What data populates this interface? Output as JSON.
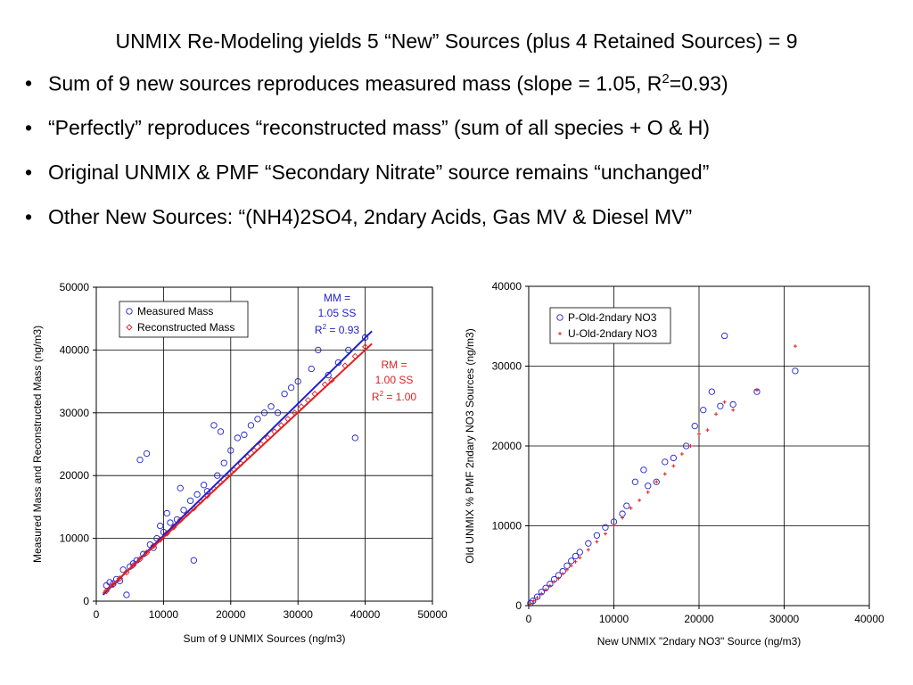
{
  "slide": {
    "title": "UNMIX Re-Modeling yields 5 “New” Sources (plus 4 Retained Sources) = 9",
    "bullets": [
      {
        "before": "Sum of 9 new sources reproduces measured mass (slope = 1.05, R",
        "sup": "2",
        "after": "=0.93)"
      },
      {
        "before": "“Perfectly” reproduces “reconstructed mass” (sum of all species + O & H)",
        "sup": "",
        "after": ""
      },
      {
        "before": "Original UNMIX & PMF “Secondary Nitrate” source remains “unchanged”",
        "sup": "",
        "after": ""
      },
      {
        "before": "Other New Sources: “(NH4)2SO4, 2ndary Acids, Gas MV & Diesel MV”",
        "sup": "",
        "after": ""
      }
    ]
  },
  "chart_data": [
    {
      "type": "scatter",
      "xlabel": "Sum of 9 UNMIX Sources (ng/m3)",
      "ylabel": "Measured Mass and Reconstructed Mass (ng/m3)",
      "xlim": [
        0,
        50000
      ],
      "ylim": [
        0,
        50000
      ],
      "xticks": [
        0,
        10000,
        20000,
        30000,
        40000,
        50000
      ],
      "yticks": [
        0,
        10000,
        20000,
        30000,
        40000,
        50000
      ],
      "grid": true,
      "legend_position": "top-left",
      "series": [
        {
          "name": "Measured Mass",
          "marker": "circle",
          "color": "#1f1fcc",
          "points": [
            [
              1500,
              2500
            ],
            [
              2000,
              3000
            ],
            [
              2500,
              2800
            ],
            [
              3000,
              3500
            ],
            [
              3500,
              3200
            ],
            [
              4000,
              5000
            ],
            [
              4500,
              1000
            ],
            [
              5000,
              5500
            ],
            [
              5500,
              6000
            ],
            [
              6000,
              6500
            ],
            [
              6500,
              22500
            ],
            [
              7000,
              7500
            ],
            [
              7500,
              23500
            ],
            [
              8000,
              9000
            ],
            [
              8500,
              8500
            ],
            [
              9000,
              10000
            ],
            [
              9500,
              12000
            ],
            [
              10000,
              11000
            ],
            [
              10500,
              14000
            ],
            [
              11000,
              12500
            ],
            [
              12000,
              13000
            ],
            [
              12500,
              18000
            ],
            [
              13000,
              14500
            ],
            [
              14000,
              16000
            ],
            [
              14500,
              6500
            ],
            [
              15000,
              17000
            ],
            [
              16000,
              18500
            ],
            [
              16500,
              17500
            ],
            [
              17500,
              28000
            ],
            [
              18000,
              20000
            ],
            [
              18500,
              27000
            ],
            [
              19000,
              22000
            ],
            [
              20000,
              24000
            ],
            [
              21000,
              26000
            ],
            [
              22000,
              26500
            ],
            [
              23000,
              28000
            ],
            [
              24000,
              29000
            ],
            [
              25000,
              30000
            ],
            [
              26000,
              31000
            ],
            [
              27000,
              30000
            ],
            [
              28000,
              33000
            ],
            [
              29000,
              34000
            ],
            [
              30000,
              35000
            ],
            [
              32000,
              37000
            ],
            [
              33000,
              40000
            ],
            [
              34500,
              36000
            ],
            [
              36000,
              38000
            ],
            [
              37500,
              40000
            ],
            [
              38500,
              26000
            ],
            [
              40000,
              42000
            ]
          ]
        },
        {
          "name": "Reconstructed Mass",
          "marker": "diamond",
          "color": "#e02020",
          "points": [
            [
              1500,
              1600
            ],
            [
              2500,
              2600
            ],
            [
              3500,
              3600
            ],
            [
              4500,
              4600
            ],
            [
              5500,
              5700
            ],
            [
              6500,
              6700
            ],
            [
              7500,
              7700
            ],
            [
              8500,
              8800
            ],
            [
              9500,
              9800
            ],
            [
              10500,
              10800
            ],
            [
              11500,
              11800
            ],
            [
              12500,
              12900
            ],
            [
              13500,
              13900
            ],
            [
              14500,
              14800
            ],
            [
              15500,
              15900
            ],
            [
              16500,
              16800
            ],
            [
              17500,
              17900
            ],
            [
              18500,
              18900
            ],
            [
              19500,
              19900
            ],
            [
              20500,
              20900
            ],
            [
              21500,
              21900
            ],
            [
              22500,
              23000
            ],
            [
              23500,
              24000
            ],
            [
              24500,
              25000
            ],
            [
              25500,
              26000
            ],
            [
              26500,
              27000
            ],
            [
              27500,
              28000
            ],
            [
              28500,
              29000
            ],
            [
              29500,
              30000
            ],
            [
              30500,
              31000
            ],
            [
              31500,
              32000
            ],
            [
              32500,
              33000
            ],
            [
              34000,
              34500
            ],
            [
              35000,
              35200
            ],
            [
              37000,
              37500
            ],
            [
              38500,
              39000
            ],
            [
              40000,
              40500
            ]
          ]
        }
      ],
      "fits": [
        {
          "series": "Measured Mass",
          "from": [
            1000,
            1000
          ],
          "to": [
            41000,
            43000
          ],
          "color": "#1f1fcc"
        },
        {
          "series": "Reconstructed Mass",
          "from": [
            1000,
            1200
          ],
          "to": [
            41000,
            41000
          ],
          "color": "#e02020"
        }
      ],
      "annotations": [
        {
          "lines": [
            "MM =",
            "1.05 SS"
          ],
          "r2": "R",
          "r2sup": "2",
          "r2rest": " = 0.93",
          "color": "#1f1fcc"
        },
        {
          "lines": [
            "RM =",
            "1.00 SS"
          ],
          "r2": "R",
          "r2sup": "2",
          "r2rest": " = 1.00",
          "color": "#e02020"
        }
      ]
    },
    {
      "type": "scatter",
      "xlabel": "New UNMIX \"2ndary NO3\" Source (ng/m3)",
      "ylabel": "Old UNMIX % PMF 2ndary NO3 Sources (ng/m3)",
      "xlim": [
        0,
        40000
      ],
      "ylim": [
        0,
        40000
      ],
      "xticks": [
        0,
        10000,
        20000,
        30000,
        40000
      ],
      "yticks": [
        0,
        10000,
        20000,
        30000,
        40000
      ],
      "grid": true,
      "legend_position": "top-left",
      "series": [
        {
          "name": "P-Old-2ndary NO3",
          "marker": "circle",
          "color": "#1f1fcc",
          "points": [
            [
              200,
              300
            ],
            [
              500,
              600
            ],
            [
              1000,
              1100
            ],
            [
              1500,
              1700
            ],
            [
              2000,
              2200
            ],
            [
              2500,
              2700
            ],
            [
              3000,
              3300
            ],
            [
              3500,
              3800
            ],
            [
              4000,
              4300
            ],
            [
              4500,
              5000
            ],
            [
              5000,
              5600
            ],
            [
              5500,
              6200
            ],
            [
              6000,
              6700
            ],
            [
              7000,
              7800
            ],
            [
              8000,
              8800
            ],
            [
              9000,
              9800
            ],
            [
              10000,
              10500
            ],
            [
              11000,
              11500
            ],
            [
              11500,
              12500
            ],
            [
              12500,
              15500
            ],
            [
              13500,
              17000
            ],
            [
              14000,
              15000
            ],
            [
              15000,
              15500
            ],
            [
              16000,
              18000
            ],
            [
              17000,
              18500
            ],
            [
              18500,
              20000
            ],
            [
              19500,
              22500
            ],
            [
              20500,
              24500
            ],
            [
              21500,
              26800
            ],
            [
              22500,
              25000
            ],
            [
              23000,
              33800
            ],
            [
              24000,
              25200
            ],
            [
              26800,
              26800
            ],
            [
              31300,
              29400
            ]
          ]
        },
        {
          "name": "U-Old-2ndary NO3",
          "marker": "plus",
          "color": "#e02020",
          "points": [
            [
              200,
              200
            ],
            [
              600,
              600
            ],
            [
              1000,
              1000
            ],
            [
              1500,
              1500
            ],
            [
              2000,
              2000
            ],
            [
              2500,
              2500
            ],
            [
              3000,
              3000
            ],
            [
              3500,
              3400
            ],
            [
              4000,
              4000
            ],
            [
              4500,
              4500
            ],
            [
              5000,
              5000
            ],
            [
              5500,
              5500
            ],
            [
              6000,
              6000
            ],
            [
              7000,
              7000
            ],
            [
              8000,
              8000
            ],
            [
              9000,
              9000
            ],
            [
              10000,
              10000
            ],
            [
              11000,
              11000
            ],
            [
              12000,
              12200
            ],
            [
              13000,
              13200
            ],
            [
              14000,
              14200
            ],
            [
              15000,
              15500
            ],
            [
              16000,
              16500
            ],
            [
              17000,
              17500
            ],
            [
              18000,
              19000
            ],
            [
              19000,
              20000
            ],
            [
              20000,
              21500
            ],
            [
              21000,
              22000
            ],
            [
              22000,
              24000
            ],
            [
              23000,
              25500
            ],
            [
              24000,
              24500
            ],
            [
              26800,
              27000
            ],
            [
              31300,
              32500
            ]
          ]
        }
      ]
    }
  ]
}
